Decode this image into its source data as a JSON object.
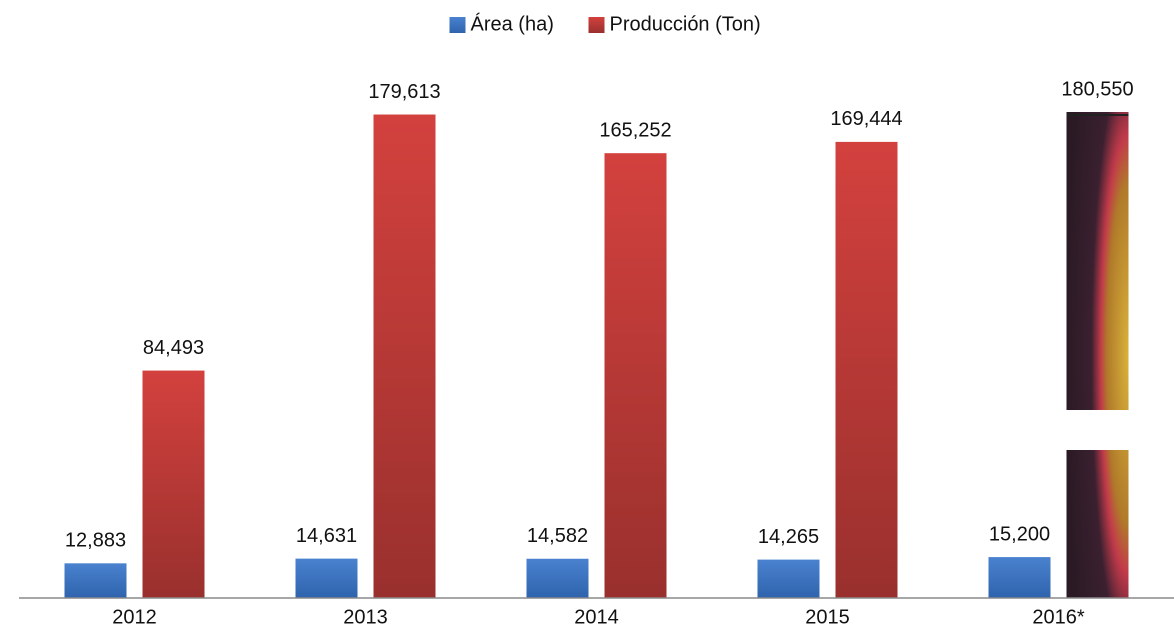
{
  "chart_data": {
    "type": "bar",
    "categories": [
      "2012",
      "2013",
      "2014",
      "2015",
      "2016*"
    ],
    "series": [
      {
        "name": "Área (ha)",
        "color": "#3a70bf",
        "values": [
          12883,
          14631,
          14582,
          14265,
          15200
        ],
        "value_labels": [
          "12,883",
          "14,631",
          "14,582",
          "14,265",
          "15,200"
        ]
      },
      {
        "name": "Producción (Ton)",
        "color": "#c4393a",
        "values": [
          84493,
          179613,
          165252,
          169444,
          180550
        ],
        "value_labels": [
          "84,493",
          "179,613",
          "165,252",
          "169,444",
          "180,550"
        ]
      }
    ],
    "legend": "top"
  }
}
